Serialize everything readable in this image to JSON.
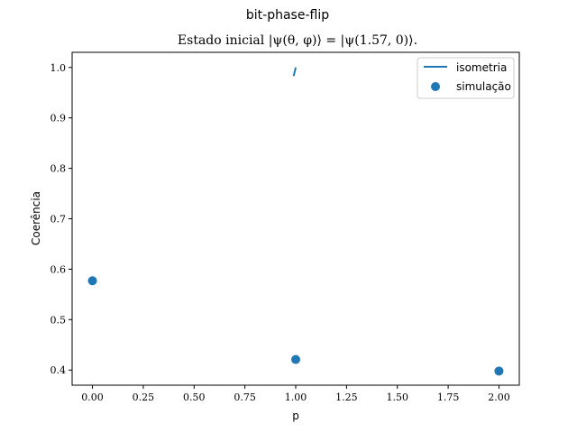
{
  "chart_data": {
    "type": "scatter",
    "suptitle": "bit-phase-flip",
    "title": "Estado inicial |ψ(θ, φ)⟩ = |ψ(1.57, 0)⟩.",
    "xlabel": "p",
    "ylabel": "Coerência",
    "xlim": [
      -0.1,
      2.1
    ],
    "ylim": [
      0.37,
      1.03
    ],
    "xticks": [
      0.0,
      0.25,
      0.5,
      0.75,
      1.0,
      1.25,
      1.5,
      1.75,
      2.0
    ],
    "xtick_labels": [
      "0.00",
      "0.25",
      "0.50",
      "0.75",
      "1.00",
      "1.25",
      "1.50",
      "1.75",
      "2.00"
    ],
    "yticks": [
      0.4,
      0.5,
      0.6,
      0.7,
      0.8,
      0.9,
      1.0
    ],
    "ytick_labels": [
      "0.4",
      "0.5",
      "0.6",
      "0.7",
      "0.8",
      "0.9",
      "1.0"
    ],
    "grid": false,
    "legend_position": "top-right",
    "series": [
      {
        "name": "isometria",
        "kind": "line",
        "color": "#1f77b4",
        "x": [
          0.99,
          1.0
        ],
        "y": [
          0.983,
          1.0
        ]
      },
      {
        "name": "simulação",
        "kind": "scatter",
        "color": "#1f77b4",
        "x": [
          0.0,
          1.0,
          2.0
        ],
        "y": [
          0.577,
          0.421,
          0.398
        ]
      }
    ]
  }
}
